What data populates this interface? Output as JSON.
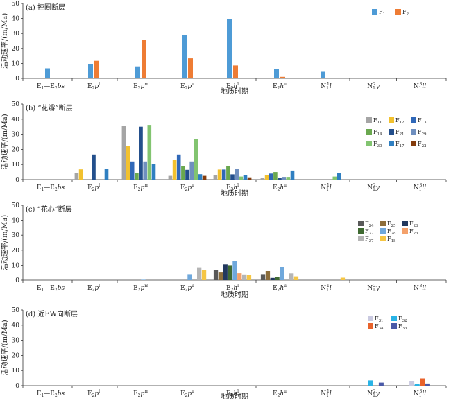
{
  "chart_data": [
    {
      "type": "bar",
      "title": "(a) 控圈断层",
      "xlabel": "地质时期",
      "ylabel": "活动速率/(m/Ma)",
      "ylim": [
        0,
        50
      ],
      "yticks": [
        0,
        10,
        20,
        30,
        40,
        50
      ],
      "grid": false,
      "legend_position": "top-right",
      "categories": [
        {
          "base": "E",
          "sub": "1",
          "mid": "—E",
          "sub2": "2",
          "ital": "bs"
        },
        {
          "base": "E",
          "sub": "2",
          "ital": "p",
          "sup": "l"
        },
        {
          "base": "E",
          "sub": "2",
          "ital": "p",
          "sup": "m"
        },
        {
          "base": "E",
          "sub": "2",
          "ital": "p",
          "sup": "u"
        },
        {
          "base": "E",
          "sub": "2",
          "ital": "h",
          "sup": "l"
        },
        {
          "base": "E",
          "sub": "2",
          "ital": "h",
          "sup": "u"
        },
        {
          "base": "N",
          "sub": "1",
          "sup": "1",
          "ital": "l"
        },
        {
          "base": "N",
          "sub": "1",
          "sup": "2",
          "ital": "y"
        },
        {
          "base": "N",
          "sub": "1",
          "sup": "3",
          "ital": "ll"
        }
      ],
      "series": [
        {
          "name": "F",
          "sub": "1",
          "color": "#4e9bd6",
          "values": [
            6.7,
            9.3,
            8.0,
            28.8,
            39.5,
            6.2,
            4.4,
            0,
            0
          ]
        },
        {
          "name": "F",
          "sub": "2",
          "color": "#ee7c34",
          "values": [
            0,
            11.7,
            25.6,
            13.4,
            8.6,
            1.0,
            0,
            0,
            0
          ]
        }
      ]
    },
    {
      "type": "bar",
      "title": "(b) “花瓣”断层",
      "xlabel": "地质时期",
      "ylabel": "活动速率/(m/Ma)",
      "ylim": [
        0,
        50
      ],
      "yticks": [
        0,
        10,
        20,
        30,
        40,
        50
      ],
      "grid": false,
      "legend_position": "right",
      "categories": [
        {
          "base": "E",
          "sub": "1",
          "mid": "—E",
          "sub2": "2",
          "ital": "bs"
        },
        {
          "base": "E",
          "sub": "2",
          "ital": "p",
          "sup": "l"
        },
        {
          "base": "E",
          "sub": "2",
          "ital": "p",
          "sup": "m"
        },
        {
          "base": "E",
          "sub": "2",
          "ital": "p",
          "sup": "u"
        },
        {
          "base": "E",
          "sub": "2",
          "ital": "h",
          "sup": "l"
        },
        {
          "base": "E",
          "sub": "2",
          "ital": "h",
          "sup": "u"
        },
        {
          "base": "N",
          "sub": "1",
          "sup": "1",
          "ital": "l"
        },
        {
          "base": "N",
          "sub": "1",
          "sup": "2",
          "ital": "y"
        },
        {
          "base": "N",
          "sub": "1",
          "sup": "3",
          "ital": "ll"
        }
      ],
      "series": [
        {
          "name": "F",
          "sub": "11",
          "color": "#a5a5a5",
          "values": [
            0,
            4.5,
            35.5,
            2.5,
            3.2,
            1.0,
            0,
            0,
            0
          ]
        },
        {
          "name": "F",
          "sub": "12",
          "color": "#f2c12e",
          "values": [
            0,
            6.8,
            22.2,
            13.0,
            6.7,
            3.0,
            0,
            0,
            0
          ]
        },
        {
          "name": "F",
          "sub": "13",
          "color": "#3068b8",
          "values": [
            0,
            0,
            12.0,
            16.6,
            6.7,
            4.0,
            0,
            0,
            0
          ]
        },
        {
          "name": "F",
          "sub": "14",
          "color": "#6aa84f",
          "values": [
            0,
            0,
            4.5,
            9.0,
            9.0,
            5.0,
            0,
            0,
            0
          ]
        },
        {
          "name": "F",
          "sub": "21",
          "color": "#234f8c",
          "values": [
            0,
            16.6,
            35.0,
            6.5,
            3.5,
            1.0,
            0,
            0,
            0
          ]
        },
        {
          "name": "F",
          "sub": "29",
          "color": "#6f8fbf",
          "values": [
            0,
            0,
            12.0,
            12.0,
            7.2,
            1.8,
            0,
            0,
            0
          ]
        },
        {
          "name": "F",
          "sub": "30",
          "color": "#82c470",
          "values": [
            0,
            0,
            36.2,
            27.0,
            2.0,
            1.8,
            2.0,
            0,
            0
          ]
        },
        {
          "name": "F",
          "sub": "17",
          "color": "#2f7fc1",
          "values": [
            0,
            7.0,
            10.3,
            3.6,
            3.0,
            6.0,
            4.6,
            0,
            0
          ]
        },
        {
          "name": "F",
          "sub": "22",
          "color": "#843c0c",
          "values": [
            0,
            0,
            0,
            2.5,
            1.5,
            0,
            0,
            0,
            0
          ]
        }
      ]
    },
    {
      "type": "bar",
      "title": "(c) “花心”断层",
      "xlabel": "地质时期",
      "ylabel": "活动速率/(m/Ma)",
      "ylim": [
        0,
        50
      ],
      "yticks": [
        0,
        10,
        20,
        30,
        40,
        50
      ],
      "grid": false,
      "legend_position": "right",
      "categories": [
        {
          "base": "E",
          "sub": "1",
          "mid": "—E",
          "sub2": "2",
          "ital": "bs"
        },
        {
          "base": "E",
          "sub": "2",
          "ital": "p",
          "sup": "l"
        },
        {
          "base": "E",
          "sub": "2",
          "ital": "p",
          "sup": "m"
        },
        {
          "base": "E",
          "sub": "2",
          "ital": "p",
          "sup": "u"
        },
        {
          "base": "E",
          "sub": "2",
          "ital": "h",
          "sup": "l"
        },
        {
          "base": "E",
          "sub": "2",
          "ital": "h",
          "sup": "u"
        },
        {
          "base": "N",
          "sub": "1",
          "sup": "1",
          "ital": "l"
        },
        {
          "base": "N",
          "sub": "1",
          "sup": "2",
          "ital": "y"
        },
        {
          "base": "N",
          "sub": "1",
          "sup": "3",
          "ital": "ll"
        }
      ],
      "series": [
        {
          "name": "F",
          "sub": "24",
          "color": "#595959",
          "values": [
            0,
            0,
            0,
            0,
            6.5,
            4.0,
            0,
            0,
            0
          ]
        },
        {
          "name": "F",
          "sub": "25",
          "color": "#8c6d3a",
          "values": [
            0,
            0,
            0,
            0,
            5.5,
            6.0,
            0,
            0,
            0
          ]
        },
        {
          "name": "F",
          "sub": "26",
          "color": "#22385e",
          "values": [
            0,
            0,
            0,
            0,
            10.5,
            1.5,
            0,
            0,
            0
          ]
        },
        {
          "name": "F",
          "sub": "27",
          "color": "#3f6a32",
          "values": [
            0,
            0,
            0,
            0,
            10.0,
            2.0,
            0,
            0,
            0
          ]
        },
        {
          "name": "F",
          "sub": "28",
          "color": "#6fa8dc",
          "values": [
            0,
            0,
            0.3,
            4.0,
            12.8,
            8.8,
            0,
            0,
            0
          ]
        },
        {
          "name": "F",
          "sub": "23",
          "color": "#f4a16b",
          "values": [
            0,
            0,
            0,
            0,
            4.6,
            0,
            0,
            0,
            0
          ]
        },
        {
          "name": "F",
          "sub": "37",
          "color": "#b5b5b5",
          "values": [
            0,
            0,
            0,
            8.5,
            3.8,
            4.5,
            0,
            0,
            0
          ]
        },
        {
          "name": "F",
          "sub": "18",
          "color": "#f6c644",
          "values": [
            0,
            0,
            0,
            6.5,
            3.6,
            2.5,
            1.6,
            0,
            0
          ]
        }
      ]
    },
    {
      "type": "bar",
      "title": "(d) 近EW向断层",
      "xlabel": "地质时期",
      "ylabel": "活动速率/(m/Ma)",
      "ylim": [
        0,
        50
      ],
      "yticks": [
        0,
        10,
        20,
        30,
        40,
        50
      ],
      "grid": false,
      "legend_position": "top-right",
      "categories": [
        {
          "base": "E",
          "sub": "1",
          "mid": "—E",
          "sub2": "2",
          "ital": "bs"
        },
        {
          "base": "E",
          "sub": "2",
          "ital": "p",
          "sup": "l"
        },
        {
          "base": "E",
          "sub": "2",
          "ital": "p",
          "sup": "m"
        },
        {
          "base": "E",
          "sub": "2",
          "ital": "p",
          "sup": "u"
        },
        {
          "base": "E",
          "sub": "2",
          "ital": "h",
          "sup": "l"
        },
        {
          "base": "E",
          "sub": "2",
          "ital": "h",
          "sup": "u"
        },
        {
          "base": "N",
          "sub": "1",
          "sup": "1",
          "ital": "l"
        },
        {
          "base": "N",
          "sub": "1",
          "sup": "2",
          "ital": "y"
        },
        {
          "base": "N",
          "sub": "1",
          "sup": "3",
          "ital": "ll"
        }
      ],
      "series": [
        {
          "name": "F",
          "sub": "31",
          "color": "#c9c9e0",
          "values": [
            0,
            0,
            0,
            0,
            0,
            0,
            0,
            0,
            3.2
          ]
        },
        {
          "name": "F",
          "sub": "32",
          "color": "#29b3e6",
          "values": [
            0,
            0,
            0,
            0,
            0,
            0,
            0,
            3.5,
            1.0
          ]
        },
        {
          "name": "F",
          "sub": "34",
          "color": "#e8632c",
          "values": [
            0,
            0,
            0,
            0,
            0,
            0,
            0,
            0,
            4.8
          ]
        },
        {
          "name": "F",
          "sub": "33",
          "color": "#4a5aa8",
          "values": [
            0,
            0,
            0,
            0,
            0,
            0,
            0,
            2.0,
            1.4
          ]
        }
      ]
    }
  ]
}
